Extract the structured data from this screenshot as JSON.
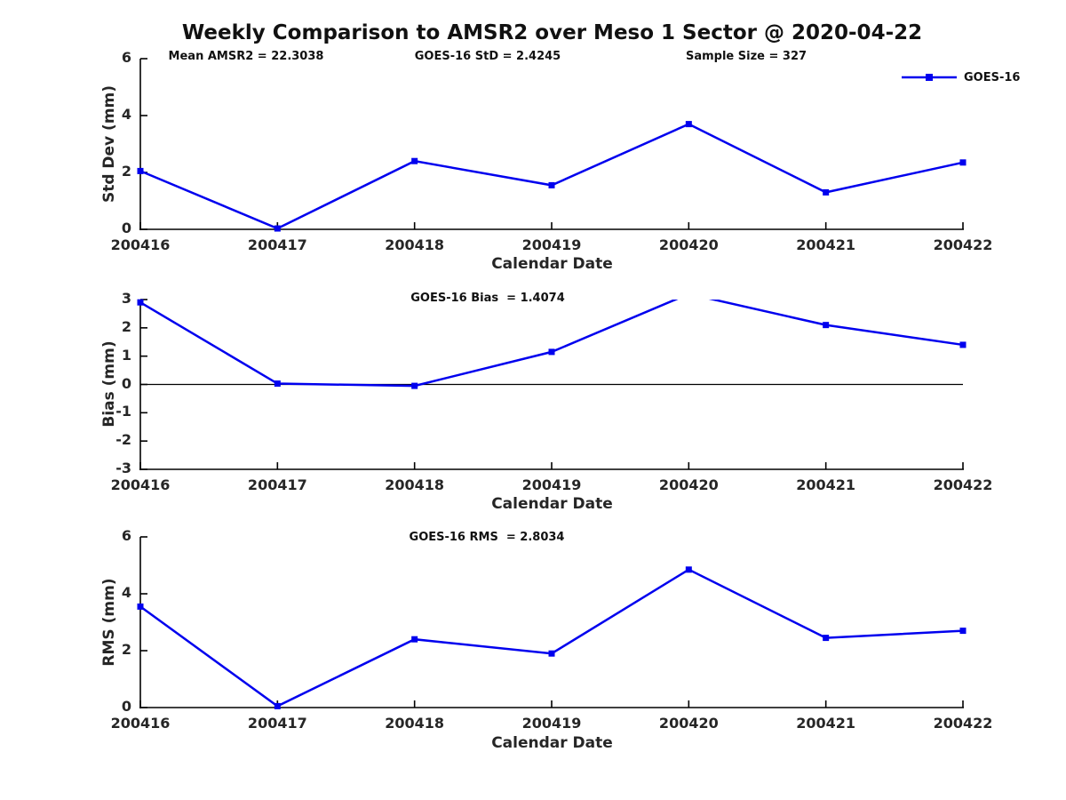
{
  "title": "Weekly Comparison to AMSR2 over Meso 1 Sector @ 2020-04-22",
  "legend": {
    "label": "GOES-16"
  },
  "colors": {
    "line": "#0000ee",
    "axis": "#000000",
    "text": "#262626",
    "zero_line": "#000000"
  },
  "chart_data": [
    {
      "type": "line",
      "panel": "std-dev",
      "categories": [
        "200416",
        "200417",
        "200418",
        "200419",
        "200420",
        "200421",
        "200422"
      ],
      "series": [
        {
          "name": "GOES-16",
          "values": [
            2.05,
            0.03,
            2.4,
            1.55,
            3.7,
            1.3,
            2.35
          ]
        }
      ],
      "xlabel": "Calendar Date",
      "ylabel": "Std Dev (mm)",
      "ylim": [
        0,
        6
      ],
      "yticks": [
        0,
        2,
        4,
        6
      ],
      "grid": false,
      "marker": "square",
      "legend_position": "top-right",
      "annotations": [
        "Mean AMSR2 = 22.3038",
        "GOES-16 StD = 2.4245",
        "Sample Size = 327"
      ]
    },
    {
      "type": "line",
      "panel": "bias",
      "categories": [
        "200416",
        "200417",
        "200418",
        "200419",
        "200420",
        "200421",
        "200422"
      ],
      "series": [
        {
          "name": "GOES-16",
          "values": [
            2.9,
            0.03,
            -0.05,
            1.15,
            3.2,
            2.1,
            1.4
          ]
        }
      ],
      "xlabel": "Calendar Date",
      "ylabel": "Bias (mm)",
      "ylim": [
        -3,
        3
      ],
      "yticks": [
        3,
        2,
        1,
        0,
        -1,
        -2,
        -3
      ],
      "grid": false,
      "marker": "square",
      "zero_line": true,
      "clip_note": "value at 200420 exceeds ylim top; line clipped, marker hidden",
      "annotations": [
        "GOES-16 Bias  = 1.4074"
      ]
    },
    {
      "type": "line",
      "panel": "rms",
      "categories": [
        "200416",
        "200417",
        "200418",
        "200419",
        "200420",
        "200421",
        "200422"
      ],
      "series": [
        {
          "name": "GOES-16",
          "values": [
            3.55,
            0.05,
            2.4,
            1.9,
            4.85,
            2.45,
            2.7
          ]
        }
      ],
      "xlabel": "Calendar Date",
      "ylabel": "RMS (mm)",
      "ylim": [
        0,
        6
      ],
      "yticks": [
        0,
        2,
        4,
        6
      ],
      "grid": false,
      "marker": "square",
      "annotations": [
        "GOES-16 RMS  = 2.8034"
      ]
    }
  ]
}
